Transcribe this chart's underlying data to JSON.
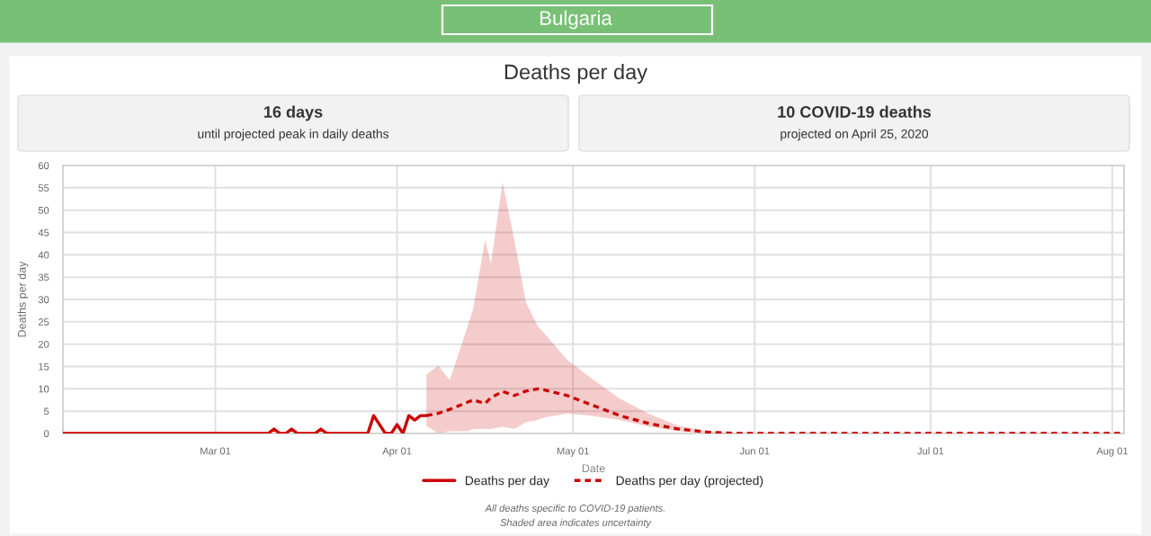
{
  "chart_data": {
    "type": "line",
    "title": "Deaths per day",
    "subtitle": "Bulgaria",
    "xlabel": "Date",
    "ylabel": "Deaths per day",
    "annotations": [
      "16 days",
      "until projected peak in daily deaths",
      "10 COVID-19 deaths",
      "projected on April 25, 2020",
      "All deaths specific to COVID-19 patients.",
      "Shaded area indicates uncertainty"
    ],
    "series": [
      {
        "name": "Deaths per day",
        "color": "#cc0000",
        "line_style": "solid",
        "x": [
          "2020-02-04",
          "2020-03-10",
          "2020-03-11",
          "2020-03-12",
          "2020-03-13",
          "2020-03-14",
          "2020-03-15",
          "2020-03-18",
          "2020-03-19",
          "2020-03-20",
          "2020-03-27",
          "2020-03-28",
          "2020-03-30",
          "2020-03-31",
          "2020-04-01",
          "2020-04-02",
          "2020-04-03",
          "2020-04-04",
          "2020-04-05",
          "2020-04-06"
        ],
        "values": [
          0,
          0,
          1,
          0,
          0,
          1,
          0,
          0,
          1,
          0,
          0,
          4,
          0,
          0,
          2,
          0,
          4,
          3,
          4,
          4
        ]
      },
      {
        "name": "Deaths per day (projected)",
        "color": "#cc0000",
        "line_style": "dashed",
        "x": [
          "2020-04-06",
          "2020-04-08",
          "2020-04-10",
          "2020-04-13",
          "2020-04-14",
          "2020-04-16",
          "2020-04-17",
          "2020-04-19",
          "2020-04-21",
          "2020-04-23",
          "2020-04-25",
          "2020-04-26",
          "2020-04-30",
          "2020-05-04",
          "2020-05-09",
          "2020-05-14",
          "2020-05-19",
          "2020-05-24",
          "2020-05-29",
          "2020-08-03"
        ],
        "values": [
          4,
          4.5,
          5.4,
          7,
          7.5,
          6.7,
          8,
          9.4,
          8.5,
          9.5,
          10,
          9.8,
          8.5,
          6.5,
          4,
          2.2,
          1,
          0.3,
          0,
          0
        ],
        "lower": [
          1.7,
          0,
          0.5,
          0.5,
          1,
          1,
          1,
          1.5,
          1,
          2.5,
          3,
          3.5,
          4.5,
          4,
          3,
          1.5,
          0.5,
          0,
          0,
          0
        ],
        "upper": [
          13.2,
          15.2,
          12,
          23.9,
          28,
          43.4,
          38,
          56.2,
          43.4,
          29.3,
          24,
          22.6,
          16.5,
          12.5,
          7.8,
          4.4,
          1.7,
          0.5,
          0,
          0
        ]
      }
    ],
    "xlim": [
      "2020-02-04",
      "2020-08-03"
    ],
    "xticks": [
      {
        "value": "2020-03-01",
        "label": "Mar 01"
      },
      {
        "value": "2020-04-01",
        "label": "Apr 01"
      },
      {
        "value": "2020-05-01",
        "label": "May 01"
      },
      {
        "value": "2020-06-01",
        "label": "Jun 01"
      },
      {
        "value": "2020-07-01",
        "label": "Jul 01"
      },
      {
        "value": "2020-08-01",
        "label": "Aug 01"
      }
    ],
    "ylim": [
      0,
      60
    ],
    "yticks": [
      0,
      5,
      10,
      15,
      20,
      25,
      30,
      35,
      40,
      45,
      50,
      55,
      60
    ],
    "grid": true,
    "legend": "bottom"
  }
}
